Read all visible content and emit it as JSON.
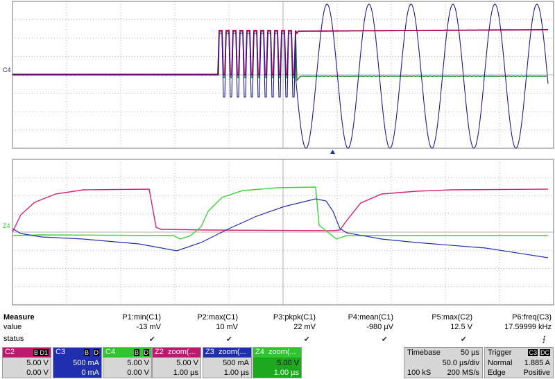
{
  "waveforms": {
    "upper_marker": "C4",
    "lower_marker": "Z4",
    "colors": {
      "magenta": "#a8005a",
      "navy": "#1b1b8c",
      "green": "#1e8a1e",
      "lightgreen": "#3ccf3c",
      "pink": "#d41f78",
      "blue": "#1f2fb0",
      "grid": "#a0a0a0"
    }
  },
  "measure": {
    "title": "Measure",
    "row_value_label": "value",
    "row_status_label": "status",
    "columns": [
      {
        "name": "P1:min(C1)",
        "value": "-13 mV"
      },
      {
        "name": "P2:max(C1)",
        "value": "10 mV"
      },
      {
        "name": "P3:pkpk(C1)",
        "value": "22 mV"
      },
      {
        "name": "P4:mean(C1)",
        "value": "-980 µV"
      },
      {
        "name": "P5:max(C2)",
        "value": "12.5 V"
      },
      {
        "name": "P6:freq(C3)",
        "value": "17.59999 kHz"
      }
    ],
    "check_glyph": "✔",
    "last_status_glyph": "⨍"
  },
  "channels": [
    {
      "name": "C2",
      "tags": [
        "B",
        "D1"
      ],
      "scale": "5.00 V",
      "offset": "0.00 V",
      "color": "#c0186e"
    },
    {
      "name": "C3",
      "tags": [
        "B",
        "D"
      ],
      "scale": "500 mA",
      "offset": "0 mA",
      "color": "#1f2fb0"
    },
    {
      "name": "C4",
      "tags": [
        "B",
        "D"
      ],
      "scale": "5.00 V",
      "offset": "0.00 V",
      "color": "#2ec52e"
    },
    {
      "name": "Z2",
      "label": "zoom(...",
      "scale": "5.00 V",
      "offset": "1.00 µs",
      "color": "#c0186e"
    },
    {
      "name": "Z3",
      "label": "zoom(...",
      "scale": "500 mA",
      "offset": "1.00 µs",
      "color": "#1f2fb0"
    },
    {
      "name": "Z4",
      "label": "zoom(...",
      "scale": "5.00 V",
      "offset": "1.00 µs",
      "color": "#2ec52e"
    }
  ],
  "timebase": {
    "label": "Timebase",
    "delay": "50 µs",
    "scale": "50.0 µs/div",
    "samples": "100 kS",
    "rate": "200 MS/s"
  },
  "trigger": {
    "label": "Trigger",
    "source": "C3",
    "coupling": "DC",
    "mode": "Normal",
    "level": "1.885 A",
    "type": "Edge",
    "slope": "Positive"
  }
}
